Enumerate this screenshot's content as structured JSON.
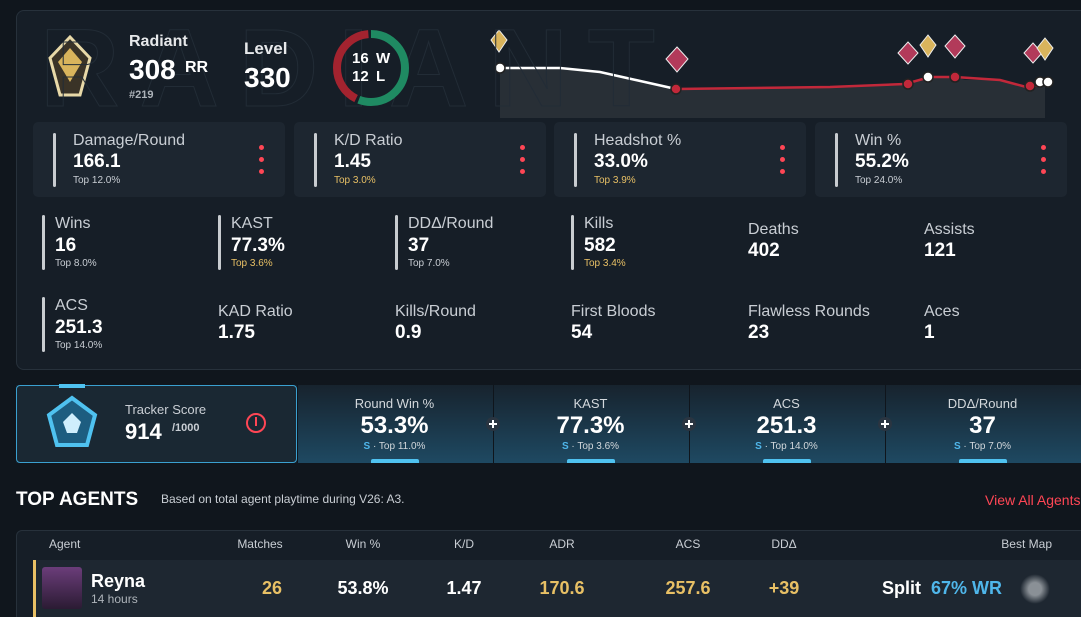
{
  "header": {
    "watermark": "RADIANT",
    "rank": "Radiant",
    "rr": "308",
    "rr_unit": "RR",
    "leaderboard": "#219",
    "level_label": "Level",
    "level": "330",
    "wins": 16,
    "wins_unit": "W",
    "losses": 12,
    "losses_unit": "L",
    "wins_color": "#1f8a62",
    "losses_color": "#a3232f"
  },
  "highlight_stats": [
    {
      "label": "Damage/Round",
      "value": "166.1",
      "percentile": "Top 12.0%"
    },
    {
      "label": "K/D Ratio",
      "value": "1.45",
      "percentile": "Top 3.0%",
      "percentile_color": "#e8c065"
    },
    {
      "label": "Headshot %",
      "value": "33.0%",
      "percentile": "Top 3.9%",
      "percentile_color": "#e8c065"
    },
    {
      "label": "Win %",
      "value": "55.2%",
      "percentile": "Top 24.0%"
    }
  ],
  "stats": [
    {
      "label": "Wins",
      "value": "16",
      "percentile": "Top 8.0%"
    },
    {
      "label": "KAST",
      "value": "77.3%",
      "percentile": "Top 3.6%",
      "percentile_color": "#e8c065"
    },
    {
      "label": "DDΔ/Round",
      "value": "37",
      "percentile": "Top 7.0%"
    },
    {
      "label": "Kills",
      "value": "582",
      "percentile": "Top 3.4%",
      "percentile_color": "#e8c065"
    },
    {
      "label": "Deaths",
      "value": "402"
    },
    {
      "label": "Assists",
      "value": "121"
    },
    {
      "label": "ACS",
      "value": "251.3",
      "percentile": "Top 14.0%"
    },
    {
      "label": "KAD Ratio",
      "value": "1.75"
    },
    {
      "label": "Kills/Round",
      "value": "0.9"
    },
    {
      "label": "First Bloods",
      "value": "54"
    },
    {
      "label": "Flawless Rounds",
      "value": "23"
    },
    {
      "label": "Aces",
      "value": "1"
    }
  ],
  "tracker": {
    "label": "Tracker Score",
    "score": "914",
    "max": "/1000",
    "tiles": [
      {
        "label": "Round Win %",
        "value": "53.3%",
        "rank": "S",
        "percentile": "· Top 11.0%"
      },
      {
        "label": "KAST",
        "value": "77.3%",
        "rank": "S",
        "percentile": "· Top 3.6%"
      },
      {
        "label": "ACS",
        "value": "251.3",
        "rank": "S",
        "percentile": "· Top 14.0%"
      },
      {
        "label": "DDΔ/Round",
        "value": "37",
        "rank": "S",
        "percentile": "· Top 7.0%"
      }
    ]
  },
  "top_agents": {
    "title": "TOP AGENTS",
    "subtitle": "Based on total agent playtime during V26: A3.",
    "link": "View All Agents",
    "columns": [
      "Agent",
      "Matches",
      "Win %",
      "K/D",
      "ADR",
      "ACS",
      "DDΔ",
      "Best Map"
    ],
    "rows": [
      {
        "agent": "Reyna",
        "time": "14 hours",
        "matches": "26",
        "win": "53.8%",
        "kd": "1.47",
        "adr": "170.6",
        "acs": "257.6",
        "dd": "+39",
        "best_map": "Split",
        "best_map_wr": "67% WR"
      }
    ]
  }
}
